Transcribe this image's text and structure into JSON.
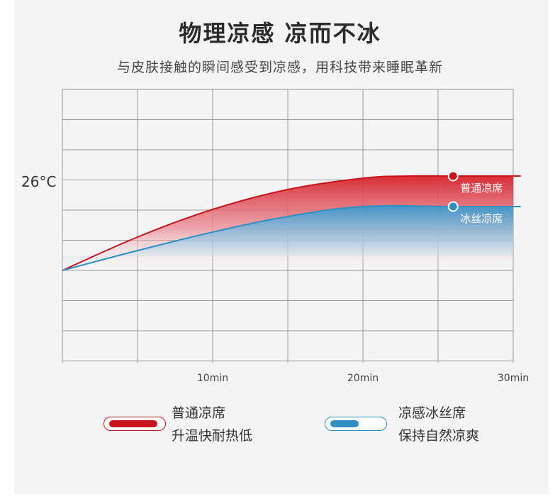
{
  "header": {
    "title": "物理凉感 凉而不冰",
    "subtitle": "与皮肤接触的瞬间感受到凉感，用科技带来睡眠革新"
  },
  "colors": {
    "ordinary": "#c8141c",
    "ice": "#2f8fc4",
    "grid": "#999999",
    "panel": "#f4f4f4"
  },
  "chart_data": {
    "type": "area",
    "y_tick_label": "26°C",
    "x_ticks": [
      {
        "value": 10,
        "label": "10min"
      },
      {
        "value": 20,
        "label": "20min"
      },
      {
        "value": 30,
        "label": "30min"
      }
    ],
    "xlim": [
      0,
      30.5
    ],
    "series": [
      {
        "name": "普通凉席",
        "label": "普通凉席",
        "color": "#c8141c",
        "x": [
          0,
          5,
          10,
          15,
          20,
          23,
          26,
          30.5
        ],
        "y": [
          0,
          47,
          86,
          114,
          130,
          133,
          133,
          133
        ]
      },
      {
        "name": "冰丝凉席",
        "label": "冰丝凉席",
        "color": "#2f8fc4",
        "x": [
          0,
          5,
          10,
          15,
          20,
          26,
          30.5
        ],
        "y": [
          0,
          28,
          54,
          76,
          90,
          90,
          90
        ]
      }
    ],
    "markers": [
      {
        "series": 0,
        "x": 26,
        "y": 133
      },
      {
        "series": 1,
        "x": 26,
        "y": 90
      }
    ],
    "grid": true
  },
  "legend": {
    "ordinary": {
      "line1": "普通凉席",
      "line2": "升温快耐热低"
    },
    "ice": {
      "line1": "凉感冰丝席",
      "line2": "保持自然凉爽"
    }
  }
}
